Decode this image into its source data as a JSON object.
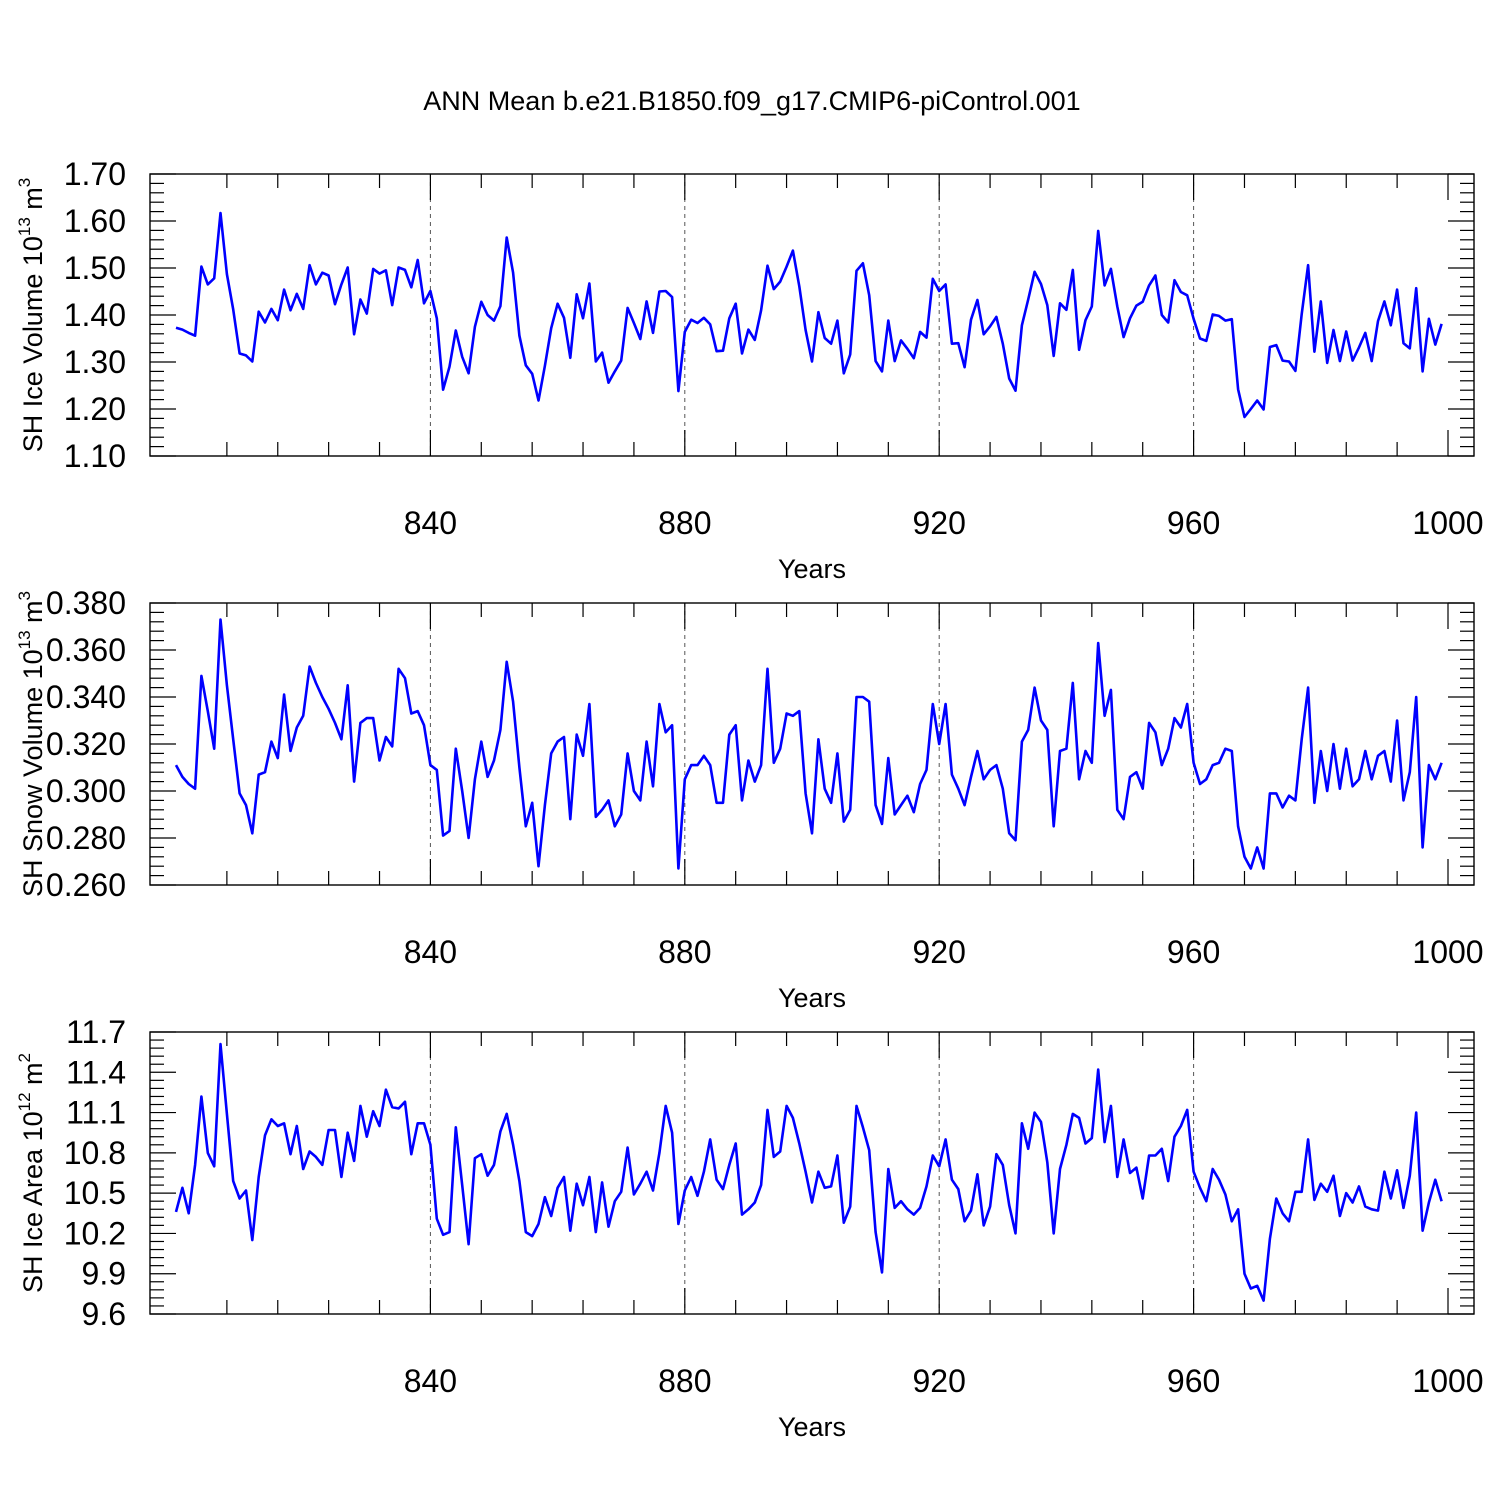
{
  "figure_title": "ANN Mean b.e21.B1850.f09_g17.CMIP6-piControl.001",
  "colors": {
    "series": "#0000ff",
    "axes": "#000000",
    "grid": "#555555"
  },
  "chart_data": [
    {
      "type": "line",
      "xlabel": "Years",
      "ylabel": "SH Ice Volume 10",
      "ylabel_exp": "13",
      "ylabel_unit": " m",
      "ylabel_unit_exp": "3",
      "xlim": [
        800,
        1004
      ],
      "ylim": [
        1.1,
        1.7
      ],
      "xticks": [
        840,
        880,
        920,
        960,
        1000
      ],
      "yticks": [
        "1.10",
        "1.20",
        "1.30",
        "1.40",
        "1.50",
        "1.60",
        "1.70"
      ],
      "grid": "vertical dashed at major x ticks",
      "x_start": 800,
      "values": [
        1.373,
        1.369,
        1.362,
        1.356,
        1.503,
        1.465,
        1.478,
        1.617,
        1.487,
        1.412,
        1.318,
        1.314,
        1.301,
        1.407,
        1.384,
        1.413,
        1.389,
        1.454,
        1.41,
        1.445,
        1.413,
        1.506,
        1.465,
        1.49,
        1.484,
        1.423,
        1.465,
        1.501,
        1.359,
        1.433,
        1.403,
        1.498,
        1.488,
        1.495,
        1.421,
        1.501,
        1.496,
        1.459,
        1.517,
        1.425,
        1.451,
        1.393,
        1.241,
        1.29,
        1.367,
        1.311,
        1.276,
        1.375,
        1.428,
        1.4,
        1.388,
        1.419,
        1.565,
        1.49,
        1.356,
        1.293,
        1.275,
        1.218,
        1.292,
        1.372,
        1.424,
        1.394,
        1.309,
        1.444,
        1.393,
        1.467,
        1.301,
        1.32,
        1.256,
        1.28,
        1.303,
        1.415,
        1.383,
        1.349,
        1.429,
        1.362,
        1.45,
        1.451,
        1.438,
        1.238,
        1.364,
        1.39,
        1.383,
        1.394,
        1.38,
        1.323,
        1.324,
        1.393,
        1.424,
        1.318,
        1.369,
        1.347,
        1.41,
        1.505,
        1.455,
        1.471,
        1.503,
        1.537,
        1.461,
        1.368,
        1.301,
        1.406,
        1.351,
        1.339,
        1.388,
        1.276,
        1.316,
        1.494,
        1.51,
        1.442,
        1.302,
        1.28,
        1.388,
        1.302,
        1.346,
        1.328,
        1.308,
        1.364,
        1.352,
        1.477,
        1.451,
        1.465,
        1.339,
        1.34,
        1.289,
        1.39,
        1.432,
        1.359,
        1.376,
        1.396,
        1.339,
        1.265,
        1.239,
        1.378,
        1.433,
        1.492,
        1.466,
        1.421,
        1.313,
        1.425,
        1.411,
        1.496,
        1.326,
        1.389,
        1.418,
        1.579,
        1.463,
        1.498,
        1.418,
        1.353,
        1.393,
        1.42,
        1.428,
        1.463,
        1.484,
        1.4,
        1.384,
        1.474,
        1.449,
        1.442,
        1.392,
        1.35,
        1.345,
        1.401,
        1.398,
        1.388,
        1.391,
        1.242,
        1.183,
        1.2,
        1.218,
        1.199,
        1.332,
        1.336,
        1.303,
        1.301,
        1.281,
        1.402,
        1.506,
        1.322,
        1.429,
        1.298,
        1.368,
        1.302,
        1.365,
        1.303,
        1.331,
        1.362,
        1.302,
        1.387,
        1.429,
        1.378,
        1.454,
        1.34,
        1.329,
        1.457,
        1.28,
        1.392,
        1.337,
        1.381
      ]
    },
    {
      "type": "line",
      "xlabel": "Years",
      "ylabel": "SH Snow Volume 10",
      "ylabel_exp": "13",
      "ylabel_unit": " m",
      "ylabel_unit_exp": "3",
      "xlim": [
        800,
        1004
      ],
      "ylim": [
        0.26,
        0.38
      ],
      "xticks": [
        840,
        880,
        920,
        960,
        1000
      ],
      "yticks": [
        "0.260",
        "0.280",
        "0.300",
        "0.320",
        "0.340",
        "0.360",
        "0.380"
      ],
      "grid": "vertical dashed at major x ticks",
      "x_start": 800,
      "values": [
        0.311,
        0.306,
        0.303,
        0.301,
        0.349,
        0.334,
        0.318,
        0.373,
        0.345,
        0.322,
        0.299,
        0.294,
        0.282,
        0.307,
        0.308,
        0.321,
        0.314,
        0.341,
        0.317,
        0.327,
        0.332,
        0.353,
        0.346,
        0.34,
        0.335,
        0.329,
        0.322,
        0.345,
        0.304,
        0.329,
        0.331,
        0.331,
        0.313,
        0.323,
        0.319,
        0.352,
        0.348,
        0.333,
        0.334,
        0.328,
        0.311,
        0.309,
        0.281,
        0.283,
        0.318,
        0.3,
        0.28,
        0.305,
        0.321,
        0.306,
        0.313,
        0.326,
        0.355,
        0.338,
        0.31,
        0.285,
        0.295,
        0.268,
        0.294,
        0.316,
        0.321,
        0.323,
        0.288,
        0.324,
        0.315,
        0.337,
        0.289,
        0.292,
        0.296,
        0.285,
        0.29,
        0.316,
        0.3,
        0.296,
        0.321,
        0.302,
        0.337,
        0.325,
        0.328,
        0.267,
        0.305,
        0.311,
        0.311,
        0.315,
        0.311,
        0.295,
        0.295,
        0.324,
        0.328,
        0.296,
        0.313,
        0.304,
        0.311,
        0.352,
        0.312,
        0.318,
        0.333,
        0.332,
        0.334,
        0.299,
        0.282,
        0.322,
        0.301,
        0.295,
        0.316,
        0.287,
        0.292,
        0.34,
        0.34,
        0.338,
        0.294,
        0.286,
        0.314,
        0.29,
        0.294,
        0.298,
        0.291,
        0.303,
        0.309,
        0.337,
        0.32,
        0.337,
        0.307,
        0.301,
        0.294,
        0.306,
        0.317,
        0.305,
        0.309,
        0.311,
        0.301,
        0.282,
        0.279,
        0.321,
        0.326,
        0.344,
        0.33,
        0.326,
        0.285,
        0.317,
        0.318,
        0.346,
        0.305,
        0.317,
        0.312,
        0.363,
        0.332,
        0.343,
        0.292,
        0.288,
        0.306,
        0.308,
        0.301,
        0.329,
        0.325,
        0.311,
        0.318,
        0.331,
        0.327,
        0.337,
        0.312,
        0.303,
        0.305,
        0.311,
        0.312,
        0.318,
        0.317,
        0.285,
        0.272,
        0.267,
        0.276,
        0.267,
        0.299,
        0.299,
        0.293,
        0.298,
        0.296,
        0.322,
        0.344,
        0.295,
        0.317,
        0.3,
        0.32,
        0.301,
        0.318,
        0.302,
        0.305,
        0.317,
        0.305,
        0.315,
        0.317,
        0.304,
        0.33,
        0.296,
        0.308,
        0.34,
        0.276,
        0.311,
        0.305,
        0.312
      ]
    },
    {
      "type": "line",
      "xlabel": "Years",
      "ylabel": "SH Ice Area 10",
      "ylabel_exp": "12",
      "ylabel_unit": " m",
      "ylabel_unit_exp": "2",
      "xlim": [
        800,
        1004
      ],
      "ylim": [
        9.6,
        11.7
      ],
      "xticks": [
        840,
        880,
        920,
        960,
        1000
      ],
      "yticks": [
        "9.6",
        "9.9",
        "10.2",
        "10.5",
        "10.8",
        "11.1",
        "11.4",
        "11.7"
      ],
      "grid": "vertical dashed at major x ticks",
      "x_start": 800,
      "values": [
        10.36,
        10.54,
        10.35,
        10.71,
        11.22,
        10.8,
        10.7,
        11.61,
        11.09,
        10.59,
        10.46,
        10.52,
        10.15,
        10.62,
        10.93,
        11.05,
        11.0,
        11.02,
        10.79,
        11.0,
        10.68,
        10.81,
        10.77,
        10.71,
        10.97,
        10.97,
        10.62,
        10.95,
        10.74,
        11.15,
        10.92,
        11.11,
        11.0,
        11.27,
        11.14,
        11.13,
        11.18,
        10.79,
        11.02,
        11.02,
        10.86,
        10.31,
        10.19,
        10.21,
        10.99,
        10.56,
        10.12,
        10.76,
        10.79,
        10.63,
        10.71,
        10.96,
        11.09,
        10.86,
        10.59,
        10.21,
        10.18,
        10.27,
        10.47,
        10.33,
        10.54,
        10.62,
        10.22,
        10.57,
        10.41,
        10.62,
        10.21,
        10.58,
        10.25,
        10.44,
        10.51,
        10.84,
        10.49,
        10.57,
        10.66,
        10.52,
        10.8,
        11.15,
        10.95,
        10.27,
        10.52,
        10.62,
        10.48,
        10.66,
        10.9,
        10.6,
        10.53,
        10.71,
        10.87,
        10.34,
        10.38,
        10.43,
        10.56,
        11.12,
        10.77,
        10.81,
        11.15,
        11.06,
        10.87,
        10.66,
        10.43,
        10.66,
        10.54,
        10.55,
        10.78,
        10.28,
        10.4,
        11.15,
        10.99,
        10.82,
        10.21,
        9.91,
        10.68,
        10.39,
        10.44,
        10.38,
        10.34,
        10.39,
        10.55,
        10.78,
        10.7,
        10.9,
        10.6,
        10.53,
        10.29,
        10.37,
        10.64,
        10.26,
        10.4,
        10.79,
        10.71,
        10.41,
        10.2,
        11.02,
        10.83,
        11.1,
        11.03,
        10.73,
        10.2,
        10.68,
        10.86,
        11.09,
        11.06,
        10.87,
        10.91,
        11.42,
        10.88,
        11.15,
        10.62,
        10.9,
        10.65,
        10.69,
        10.46,
        10.78,
        10.78,
        10.83,
        10.59,
        10.92,
        11.0,
        11.12,
        10.66,
        10.54,
        10.44,
        10.68,
        10.6,
        10.49,
        10.29,
        10.38,
        9.9,
        9.79,
        9.81,
        9.7,
        10.16,
        10.46,
        10.35,
        10.29,
        10.51,
        10.51,
        10.9,
        10.45,
        10.57,
        10.51,
        10.63,
        10.33,
        10.5,
        10.43,
        10.55,
        10.4,
        10.38,
        10.37,
        10.66,
        10.46,
        10.67,
        10.39,
        10.63,
        11.1,
        10.22,
        10.43,
        10.6,
        10.44
      ]
    }
  ]
}
